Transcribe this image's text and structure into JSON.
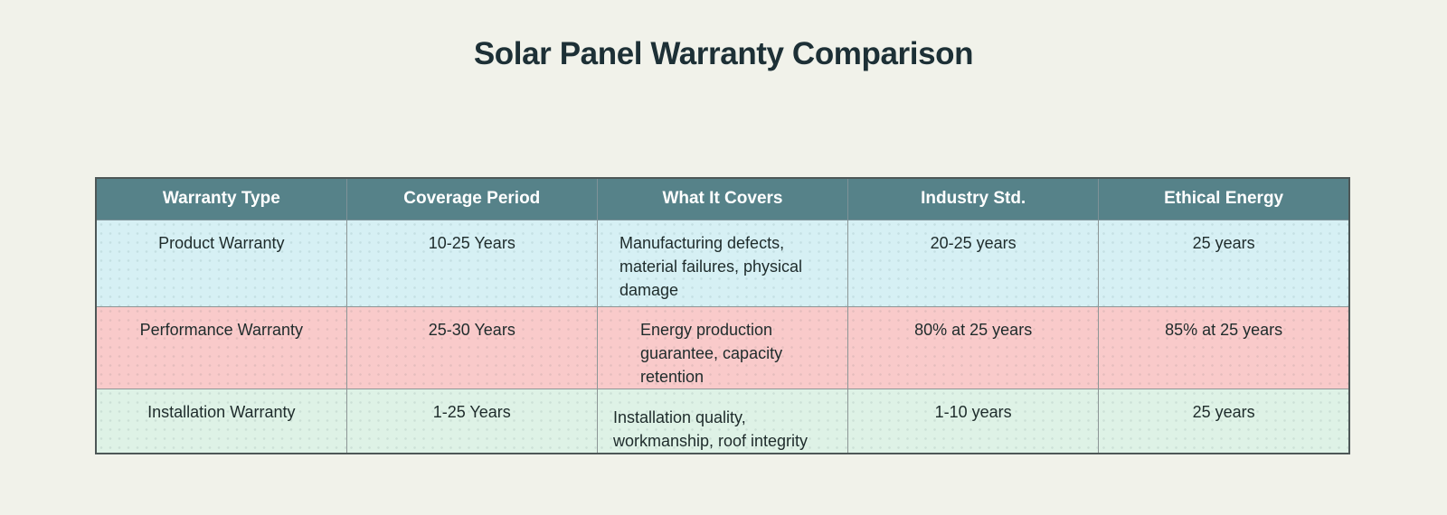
{
  "title": "Solar Panel Warranty Comparison",
  "chart_data": {
    "type": "table",
    "title": "Solar Panel Warranty Comparison",
    "columns": [
      "Warranty Type",
      "Coverage Period",
      "What It Covers",
      "Industry Std.",
      "Ethical Energy"
    ],
    "rows": [
      [
        "Product Warranty",
        "10-25 Years",
        "Manufacturing defects, material failures, physical damage",
        "20-25 years",
        "25 years"
      ],
      [
        "Performance Warranty",
        "25-30 Years",
        "Energy production guarantee, capacity retention",
        "80% at 25 years",
        "85% at 25 years"
      ],
      [
        "Installation Warranty",
        "1-25 Years",
        "Installation quality, workmanship, roof integrity",
        "1-10 years",
        "25 years"
      ]
    ],
    "row_colors": [
      "#d6f0f4",
      "#f9caca",
      "#def2e6"
    ],
    "layout_hints": {
      "header_position": "top",
      "grid": true
    }
  },
  "colors": {
    "page_background": "#f1f2ea",
    "header_background": "#568289",
    "header_text": "#ffffff",
    "body_text": "#1e2b2b",
    "title_text": "#1d3036",
    "inner_border": "#8d9696",
    "outer_border": "#4d5757"
  }
}
